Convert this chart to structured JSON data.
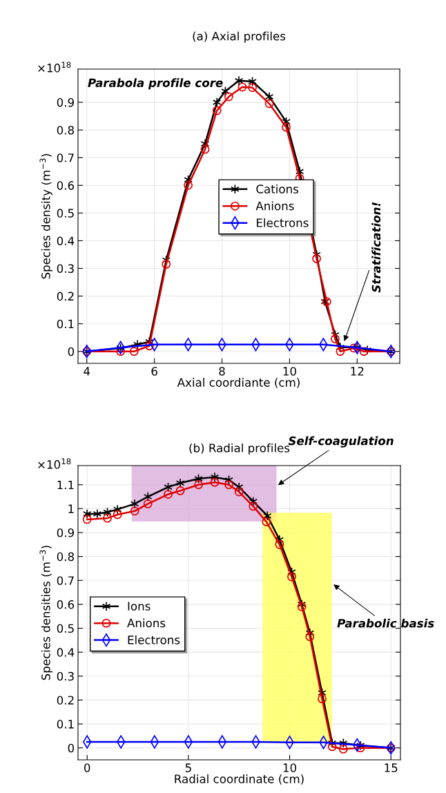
{
  "chart_data": [
    {
      "type": "line",
      "title": "(a) Axial profiles",
      "xlabel": "Axial coordiante (cm)",
      "ylabel": "Species density (m$^{−3}$)",
      "xlim": [
        3.74,
        13.26
      ],
      "xticks": [
        4,
        6,
        8,
        10,
        12
      ],
      "ylim": [
        -0.043,
        1.02
      ],
      "yticks": [
        0,
        0.1,
        0.2,
        0.3,
        0.4,
        0.5,
        0.6,
        0.7,
        0.8,
        0.9
      ],
      "grid": true,
      "legend": "center",
      "line_style": "solid",
      "annotations": [
        "×10$^{18}$",
        "Parabola profile core",
        {
          "text": "Stratification!",
          "x": 11.6,
          "y": 0.03
        }
      ],
      "series": [
        {
          "name": "Cations",
          "color": "#000000",
          "marker": "cross",
          "x": [
            4,
            5,
            5.5,
            5.85,
            6.35,
            7,
            7.5,
            7.85,
            8.1,
            8.5,
            8.9,
            9.4,
            9.9,
            10.3,
            10.8,
            11.05,
            11.35,
            11.5,
            12,
            12.3,
            13
          ],
          "values": [
            0,
            0.012,
            0.025,
            0.035,
            0.33,
            0.62,
            0.75,
            0.9,
            0.94,
            0.978,
            0.975,
            0.92,
            0.83,
            0.65,
            0.35,
            0.18,
            0.06,
            0.015,
            0.015,
            0.005,
            0
          ]
        },
        {
          "name": "Anions",
          "color": "#e00000",
          "marker": "circle",
          "x": [
            4,
            5,
            5.4,
            5.85,
            6.35,
            7,
            7.5,
            7.85,
            8.2,
            8.6,
            8.9,
            9.4,
            9.9,
            10.3,
            10.8,
            11.1,
            11.35,
            11.5,
            11.9,
            12.2,
            13
          ],
          "values": [
            0,
            0,
            0,
            0.02,
            0.315,
            0.6,
            0.73,
            0.87,
            0.92,
            0.955,
            0.953,
            0.895,
            0.81,
            0.625,
            0.335,
            0.18,
            0.045,
            0,
            0.012,
            0,
            0
          ]
        },
        {
          "name": "Electrons",
          "color": "#0000ff",
          "marker": "diamond",
          "x": [
            4,
            5,
            6,
            7,
            8,
            9,
            10,
            11,
            12,
            13
          ],
          "values": [
            0,
            0.014,
            0.025,
            0.025,
            0.025,
            0.025,
            0.025,
            0.025,
            0.014,
            0
          ]
        }
      ]
    },
    {
      "type": "line",
      "title": "(b) Radial profiles",
      "xlabel": "Radial coordinate (cm)",
      "ylabel": "Species densities (m$^{−3}$)",
      "xlim": [
        -0.45,
        15.47
      ],
      "xticks": [
        0,
        5,
        10,
        15
      ],
      "ylim": [
        -0.05,
        1.18
      ],
      "yticks": [
        0,
        0.1,
        0.2,
        0.3,
        0.4,
        0.5,
        0.6,
        0.7,
        0.8,
        0.9,
        1,
        1.1
      ],
      "grid": true,
      "legend": "center left",
      "line_style": "solid",
      "annotations": [
        "×10$^{18}$"
      ],
      "bands": [
        {
          "axis": "x",
          "from": 2.2,
          "to": 9.35,
          "label": "Self-coagulation",
          "color": "#d8a8d8"
        },
        {
          "axis": "x",
          "from": 8.66,
          "to": 12.09,
          "label": "Parabolic basis",
          "color": "#ffff55"
        }
      ],
      "series": [
        {
          "name": "Ions",
          "color": "#000000",
          "marker": "cross",
          "x": [
            0,
            0.5,
            1,
            1.5,
            2.35,
            3,
            4,
            4.6,
            5.5,
            6.3,
            7,
            7.5,
            8.2,
            8.9,
            9.5,
            10.1,
            10.6,
            11,
            11.6,
            12.1,
            12.65,
            13.5,
            15
          ],
          "values": [
            0.978,
            0.978,
            0.985,
            0.997,
            1.02,
            1.05,
            1.09,
            1.107,
            1.125,
            1.132,
            1.12,
            1.09,
            1.03,
            0.97,
            0.87,
            0.735,
            0.6,
            0.48,
            0.23,
            0.02,
            0.02,
            0.01,
            0
          ]
        },
        {
          "name": "Anions",
          "color": "#e00000",
          "marker": "circle",
          "x": [
            0,
            1,
            1.5,
            2.35,
            3,
            4,
            4.6,
            5.5,
            6.3,
            7,
            7.5,
            8.2,
            8.85,
            9.5,
            10.1,
            10.6,
            11,
            11.6,
            12.1,
            12.65,
            13.5,
            15
          ],
          "values": [
            0.955,
            0.96,
            0.975,
            0.99,
            1.02,
            1.06,
            1.075,
            1.1,
            1.11,
            1.1,
            1.07,
            1.01,
            0.945,
            0.85,
            0.715,
            0.59,
            0.465,
            0.205,
            0.005,
            -0.005,
            0,
            0
          ]
        },
        {
          "name": "Electrons",
          "color": "#0000ff",
          "marker": "diamond",
          "x": [
            0,
            1.67,
            3.33,
            5,
            6.67,
            8.33,
            10,
            11.67,
            13.33,
            15
          ],
          "values": [
            0.025,
            0.025,
            0.025,
            0.025,
            0.025,
            0.025,
            0.023,
            0.023,
            0.012,
            0
          ]
        }
      ]
    }
  ]
}
